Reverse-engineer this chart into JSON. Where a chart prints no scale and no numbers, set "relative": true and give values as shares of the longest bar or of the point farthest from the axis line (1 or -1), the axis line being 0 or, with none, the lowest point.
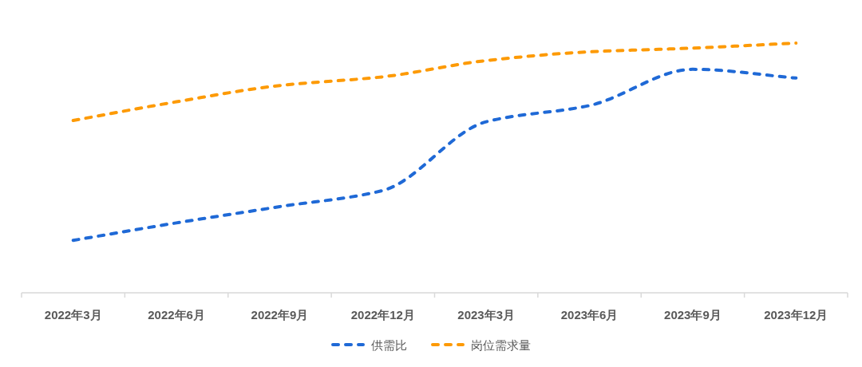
{
  "chart_data": {
    "type": "line",
    "relative": true,
    "categories": [
      "2022年3月",
      "2022年6月",
      "2022年9月",
      "2022年12月",
      "2023年3月",
      "2023年6月",
      "2023年9月",
      "2023年12月"
    ],
    "series": [
      {
        "name": "供需比",
        "color": "#1f69d6",
        "values": [
          0.21,
          0.28,
          0.345,
          0.41,
          0.685,
          0.75,
          0.895,
          0.86
        ]
      },
      {
        "name": "岗位需求量",
        "color": "#fd9a05",
        "values": [
          0.69,
          0.765,
          0.83,
          0.865,
          0.93,
          0.965,
          0.98,
          1.0
        ]
      }
    ],
    "line_style": "dashed",
    "legend": "bottom"
  }
}
